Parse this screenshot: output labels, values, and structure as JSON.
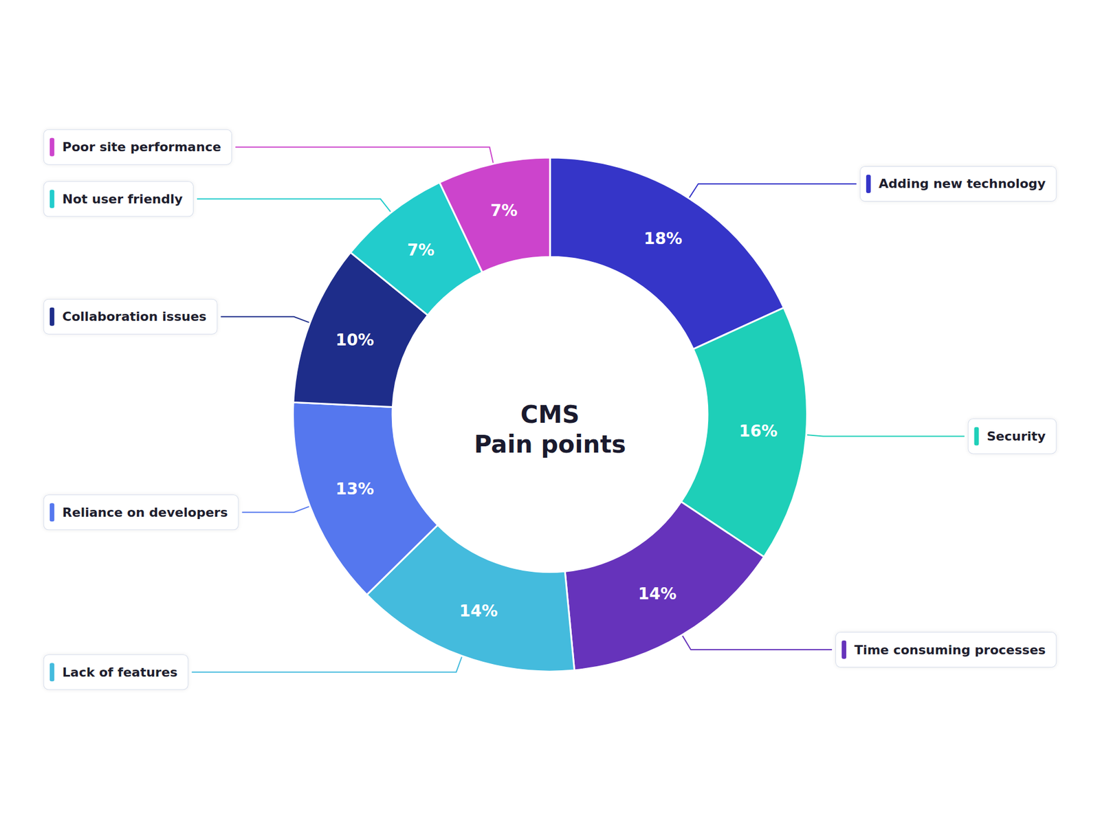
{
  "chart_data": {
    "type": "pie",
    "title": "CMS",
    "subtitle": "Pain points",
    "categories": [
      "Adding new technology",
      "Security",
      "Time consuming processes",
      "Lack of features",
      "Reliance on developers",
      "Collaboration issues",
      "Not user friendly",
      "Poor site performance"
    ],
    "values": [
      18,
      16,
      14,
      14,
      13,
      10,
      7,
      7
    ],
    "value_labels": [
      "18%",
      "16%",
      "14%",
      "14%",
      "13%",
      "10%",
      "7%",
      "7%"
    ],
    "colors": [
      "#3535c8",
      "#1ecfb8",
      "#6633bb",
      "#44bbdd",
      "#5577ee",
      "#1e2d8a",
      "#22cccc",
      "#cc44cc"
    ],
    "data_labels": true
  }
}
